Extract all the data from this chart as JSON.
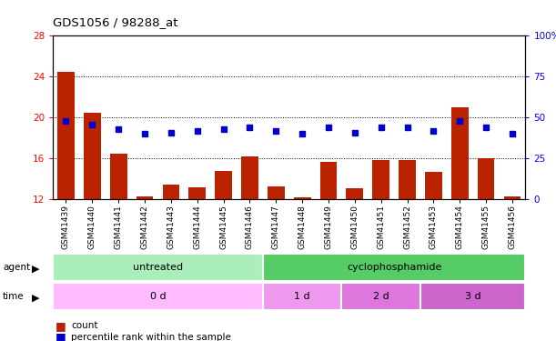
{
  "title": "GDS1056 / 98288_at",
  "samples": [
    "GSM41439",
    "GSM41440",
    "GSM41441",
    "GSM41442",
    "GSM41443",
    "GSM41444",
    "GSM41445",
    "GSM41446",
    "GSM41447",
    "GSM41448",
    "GSM41449",
    "GSM41450",
    "GSM41451",
    "GSM41452",
    "GSM41453",
    "GSM41454",
    "GSM41455",
    "GSM41456"
  ],
  "count_values": [
    24.5,
    20.5,
    16.5,
    12.3,
    13.5,
    13.2,
    14.8,
    16.2,
    13.3,
    12.2,
    15.7,
    13.1,
    15.9,
    15.9,
    14.7,
    21.0,
    16.0,
    12.3
  ],
  "percentile_values": [
    48,
    46,
    43,
    40,
    41,
    42,
    43,
    44,
    42,
    40,
    44,
    41,
    44,
    44,
    42,
    48,
    44,
    40
  ],
  "count_base": 12,
  "ylim_left": [
    12,
    28
  ],
  "ylim_right": [
    0,
    100
  ],
  "yticks_left": [
    12,
    16,
    20,
    24,
    28
  ],
  "yticks_right": [
    0,
    25,
    50,
    75,
    100
  ],
  "ytick_labels_right": [
    "0",
    "25",
    "50",
    "75",
    "100%"
  ],
  "bar_color": "#bb2200",
  "dot_color": "#0000cc",
  "grid_color": "#000000",
  "bg_color": "#ffffff",
  "agent_row": [
    {
      "label": "untreated",
      "start": 0,
      "end": 8,
      "color": "#aaeebb"
    },
    {
      "label": "cyclophosphamide",
      "start": 8,
      "end": 18,
      "color": "#55cc66"
    }
  ],
  "time_row": [
    {
      "label": "0 d",
      "start": 0,
      "end": 8,
      "color": "#ffbbff"
    },
    {
      "label": "1 d",
      "start": 8,
      "end": 11,
      "color": "#ee99ee"
    },
    {
      "label": "2 d",
      "start": 11,
      "end": 14,
      "color": "#dd77dd"
    },
    {
      "label": "3 d",
      "start": 14,
      "end": 18,
      "color": "#cc66cc"
    }
  ]
}
